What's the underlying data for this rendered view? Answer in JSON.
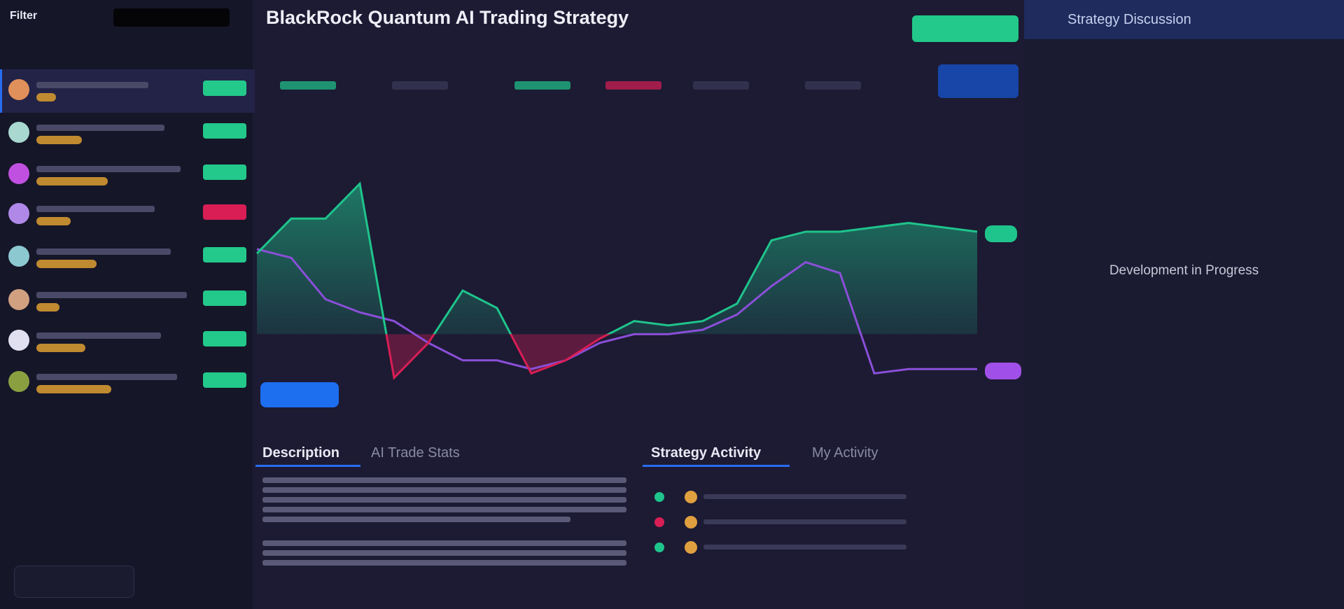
{
  "header": {
    "title": "BlackRock Quantum AI Trading Strategy"
  },
  "sidebar": {
    "filter": "Filter"
  },
  "tabs": {
    "left": [
      "Description",
      "AI Trade Stats"
    ],
    "right": [
      "Strategy Activity",
      "My Activity"
    ]
  },
  "panel": {
    "title": "Strategy Discussion",
    "message": "Development in Progress"
  },
  "chart_data": {
    "type": "line",
    "categories": [
      null,
      null,
      null,
      null,
      null,
      null,
      null,
      null,
      null,
      null,
      null,
      null,
      null,
      null,
      null,
      null,
      null,
      null,
      null,
      null,
      null,
      null
    ],
    "series": [
      {
        "color": "#1fc48c",
        "values": [
          37,
          53,
          53,
          69,
          -20,
          -4,
          20,
          12,
          -18,
          -12,
          -2,
          6,
          4,
          6,
          14,
          43,
          47,
          47,
          49,
          51,
          49,
          47
        ]
      },
      {
        "color": "#8a4fd8",
        "values": [
          39,
          35,
          16,
          10,
          6,
          -4,
          -12,
          -12,
          -16,
          -12,
          -4,
          0,
          0,
          2,
          9,
          22,
          33,
          28,
          -18,
          -16,
          -16,
          -16
        ]
      }
    ],
    "negative_color": "#d81e55",
    "ylim": [
      -40,
      90
    ]
  }
}
